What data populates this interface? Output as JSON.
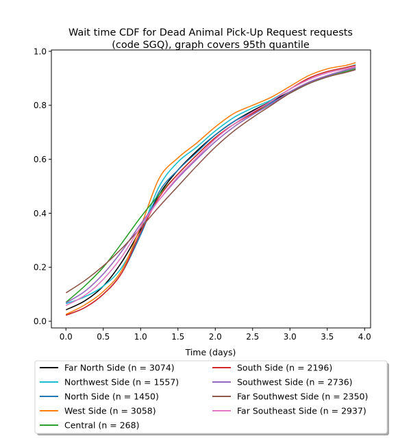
{
  "chart_data": {
    "type": "line",
    "title": [
      "Wait time CDF for Dead Animal Pick-Up Request  requests",
      "(code SGQ), graph covers 95th quantile"
    ],
    "xlabel": "Time (days)",
    "ylabel": "",
    "xlim": [
      -0.195,
      4.08
    ],
    "ylim": [
      -0.025,
      1.005
    ],
    "xticks": [
      0.0,
      0.5,
      1.0,
      1.5,
      2.0,
      2.5,
      3.0,
      3.5,
      4.0
    ],
    "xtick_labels": [
      "0.0",
      "0.5",
      "1.0",
      "1.5",
      "2.0",
      "2.5",
      "3.0",
      "3.5",
      "4.0"
    ],
    "yticks": [
      0.0,
      0.2,
      0.4,
      0.6,
      0.8,
      1.0
    ],
    "ytick_labels": [
      "0.0",
      "0.2",
      "0.4",
      "0.6",
      "0.8",
      "1.0"
    ],
    "grid": false,
    "legend": {
      "placement": "below-plot",
      "columns": 2
    },
    "series": [
      {
        "name": "Far North Side (n = 3074)",
        "color": "#000000",
        "x": [
          0,
          0.25,
          0.5,
          0.75,
          1.0,
          1.25,
          1.5,
          1.75,
          2.0,
          2.25,
          2.5,
          2.75,
          3.0,
          3.25,
          3.5,
          3.75,
          3.88
        ],
        "y": [
          0.042,
          0.075,
          0.13,
          0.22,
          0.34,
          0.47,
          0.56,
          0.63,
          0.69,
          0.74,
          0.78,
          0.815,
          0.85,
          0.885,
          0.91,
          0.93,
          0.94
        ]
      },
      {
        "name": "Northwest Side (n = 1557)",
        "color": "#17becf",
        "x": [
          0,
          0.25,
          0.5,
          0.75,
          1.0,
          1.25,
          1.5,
          1.75,
          2.0,
          2.25,
          2.5,
          2.75,
          3.0,
          3.25,
          3.5,
          3.75,
          3.88
        ],
        "y": [
          0.065,
          0.09,
          0.13,
          0.2,
          0.33,
          0.5,
          0.59,
          0.645,
          0.705,
          0.755,
          0.79,
          0.82,
          0.86,
          0.9,
          0.925,
          0.94,
          0.95
        ]
      },
      {
        "name": "North Side (n = 1450)",
        "color": "#1f77b4",
        "x": [
          0,
          0.25,
          0.5,
          0.75,
          1.0,
          1.25,
          1.5,
          1.75,
          2.0,
          2.25,
          2.5,
          2.75,
          3.0,
          3.25,
          3.5,
          3.75,
          3.88
        ],
        "y": [
          0.022,
          0.05,
          0.1,
          0.18,
          0.32,
          0.48,
          0.56,
          0.625,
          0.69,
          0.74,
          0.775,
          0.81,
          0.845,
          0.88,
          0.905,
          0.925,
          0.935
        ]
      },
      {
        "name": "West Side (n = 3058)",
        "color": "#ff7f0e",
        "x": [
          0,
          0.25,
          0.5,
          0.75,
          1.0,
          1.25,
          1.5,
          1.75,
          2.0,
          2.25,
          2.5,
          2.75,
          3.0,
          3.25,
          3.5,
          3.75,
          3.88
        ],
        "y": [
          0.025,
          0.06,
          0.11,
          0.19,
          0.35,
          0.53,
          0.605,
          0.66,
          0.72,
          0.77,
          0.8,
          0.83,
          0.87,
          0.91,
          0.935,
          0.948,
          0.958
        ]
      },
      {
        "name": "Central (n = 268)",
        "color": "#2ca02c",
        "x": [
          0,
          0.25,
          0.5,
          0.75,
          1.0,
          1.25,
          1.5,
          1.75,
          2.0,
          2.25,
          2.5,
          2.75,
          3.0,
          3.25,
          3.5,
          3.75,
          3.88
        ],
        "y": [
          0.07,
          0.13,
          0.2,
          0.29,
          0.385,
          0.47,
          0.545,
          0.615,
          0.68,
          0.73,
          0.77,
          0.805,
          0.845,
          0.88,
          0.905,
          0.925,
          0.935
        ]
      },
      {
        "name": "South Side (n = 2196)",
        "color": "#d62728",
        "x": [
          0,
          0.25,
          0.5,
          0.75,
          1.0,
          1.25,
          1.5,
          1.75,
          2.0,
          2.25,
          2.5,
          2.75,
          3.0,
          3.25,
          3.5,
          3.75,
          3.88
        ],
        "y": [
          0.022,
          0.05,
          0.1,
          0.18,
          0.33,
          0.46,
          0.545,
          0.615,
          0.68,
          0.73,
          0.77,
          0.815,
          0.86,
          0.9,
          0.925,
          0.94,
          0.948
        ]
      },
      {
        "name": "Southwest Side (n = 2736)",
        "color": "#9467bd",
        "x": [
          0,
          0.25,
          0.5,
          0.75,
          1.0,
          1.25,
          1.5,
          1.75,
          2.0,
          2.25,
          2.5,
          2.75,
          3.0,
          3.25,
          3.5,
          3.75,
          3.88
        ],
        "y": [
          0.068,
          0.11,
          0.175,
          0.26,
          0.36,
          0.45,
          0.53,
          0.6,
          0.665,
          0.72,
          0.765,
          0.805,
          0.85,
          0.885,
          0.91,
          0.93,
          0.94
        ]
      },
      {
        "name": "Far Southwest Side (n = 2350)",
        "color": "#8c564b",
        "x": [
          0,
          0.25,
          0.5,
          0.75,
          1.0,
          1.25,
          1.5,
          1.75,
          2.0,
          2.25,
          2.5,
          2.75,
          3.0,
          3.25,
          3.5,
          3.75,
          3.88
        ],
        "y": [
          0.105,
          0.15,
          0.205,
          0.27,
          0.345,
          0.425,
          0.5,
          0.575,
          0.645,
          0.705,
          0.755,
          0.8,
          0.845,
          0.88,
          0.905,
          0.922,
          0.932
        ]
      },
      {
        "name": "Far Southeast Side (n = 2937)",
        "color": "#e377c2",
        "x": [
          0,
          0.25,
          0.5,
          0.75,
          1.0,
          1.25,
          1.5,
          1.75,
          2.0,
          2.25,
          2.5,
          2.75,
          3.0,
          3.25,
          3.5,
          3.75,
          3.88
        ],
        "y": [
          0.058,
          0.095,
          0.155,
          0.24,
          0.35,
          0.45,
          0.535,
          0.605,
          0.675,
          0.73,
          0.775,
          0.815,
          0.86,
          0.895,
          0.92,
          0.935,
          0.943
        ]
      }
    ]
  }
}
